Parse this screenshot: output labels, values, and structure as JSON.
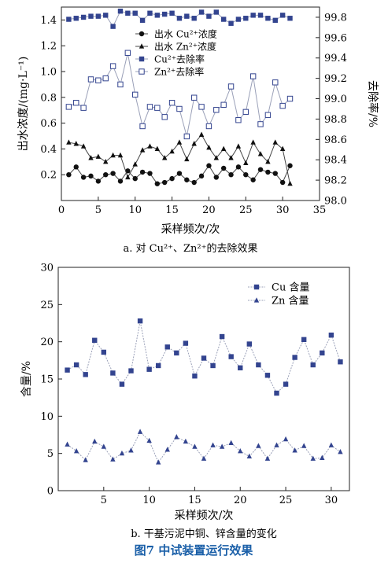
{
  "figure": {
    "caption": "图7 中试装置运行效果",
    "caption_color": "#1a5fa8"
  },
  "chart_data": [
    {
      "type": "line",
      "caption": "a. 对 Cu²⁺、Zn²⁺的去除效果",
      "xlabel": "采样频次/次",
      "ylabel_left": "出水浓度/(mg·L⁻¹)",
      "ylabel_right": "去除率/%",
      "xlim": [
        0,
        35
      ],
      "xticks": [
        0,
        5,
        10,
        15,
        20,
        25,
        30,
        35
      ],
      "ylim_left": [
        0,
        1.5
      ],
      "yticks_left": [
        "0.2",
        "0.4",
        "0.6",
        "0.8",
        "1.0",
        "1.2",
        "1.4"
      ],
      "ylim_right": [
        98.0,
        99.9
      ],
      "yticks_right": [
        "98.0",
        "98.2",
        "98.4",
        "98.6",
        "98.8",
        "99.0",
        "99.2",
        "99.4",
        "99.6",
        "99.8"
      ],
      "legend_position": "top-center",
      "x": [
        1,
        2,
        3,
        4,
        5,
        6,
        7,
        8,
        9,
        10,
        11,
        12,
        13,
        14,
        15,
        16,
        17,
        18,
        19,
        20,
        21,
        22,
        23,
        24,
        25,
        26,
        27,
        28,
        29,
        30,
        31
      ],
      "series": [
        {
          "name": "出水 Cu²⁺浓度",
          "axis": "left",
          "marker": "circle-filled",
          "values": [
            0.2,
            0.26,
            0.18,
            0.19,
            0.15,
            0.2,
            0.21,
            0.15,
            0.23,
            0.17,
            0.22,
            0.21,
            0.13,
            0.14,
            0.17,
            0.21,
            0.16,
            0.14,
            0.19,
            0.27,
            0.18,
            0.25,
            0.2,
            0.26,
            0.2,
            0.16,
            0.24,
            0.22,
            0.21,
            0.14,
            0.27
          ]
        },
        {
          "name": "出水 Zn²⁺浓度",
          "axis": "left",
          "marker": "triangle-filled",
          "values": [
            0.45,
            0.44,
            0.42,
            0.33,
            0.34,
            0.3,
            0.35,
            0.35,
            0.18,
            0.28,
            0.39,
            0.42,
            0.4,
            0.33,
            0.38,
            0.45,
            0.32,
            0.44,
            0.51,
            0.41,
            0.33,
            0.4,
            0.33,
            0.42,
            0.29,
            0.45,
            0.36,
            0.3,
            0.45,
            0.4,
            0.13
          ]
        },
        {
          "name": "Cu²⁺去除率",
          "axis": "right",
          "marker": "square-filled",
          "values": [
            99.78,
            99.79,
            99.8,
            99.81,
            99.81,
            99.82,
            99.71,
            99.86,
            99.84,
            99.84,
            99.77,
            99.84,
            99.82,
            99.83,
            99.84,
            99.79,
            99.81,
            99.79,
            99.85,
            99.81,
            99.85,
            99.78,
            99.74,
            99.78,
            99.79,
            99.82,
            99.82,
            99.79,
            99.77,
            99.82,
            99.79
          ]
        },
        {
          "name": "Zn²⁺去除率",
          "axis": "right",
          "marker": "square-open",
          "values": [
            98.92,
            98.96,
            98.91,
            99.19,
            99.18,
            99.2,
            99.32,
            99.14,
            99.45,
            99.04,
            98.73,
            98.92,
            98.91,
            98.82,
            98.96,
            98.9,
            98.63,
            99.01,
            98.92,
            98.73,
            98.89,
            98.94,
            99.12,
            98.79,
            98.87,
            99.22,
            98.75,
            98.84,
            99.16,
            98.93,
            99.0
          ]
        }
      ]
    },
    {
      "type": "line",
      "caption": "b. 干基污泥中铜、锌含量的变化",
      "xlabel": "采样频次/次",
      "ylabel": "含量/%",
      "xlim": [
        0,
        32
      ],
      "xticks": [
        5,
        10,
        15,
        20,
        25,
        30
      ],
      "ylim": [
        0,
        30
      ],
      "yticks": [
        0,
        5,
        10,
        15,
        20,
        25,
        30
      ],
      "legend_position": "top-right",
      "x": [
        1,
        2,
        3,
        4,
        5,
        6,
        7,
        8,
        9,
        10,
        11,
        12,
        13,
        14,
        15,
        16,
        17,
        18,
        19,
        20,
        21,
        22,
        23,
        24,
        25,
        26,
        27,
        28,
        29,
        30,
        31
      ],
      "series": [
        {
          "name": "Cu 含量",
          "marker": "square-filled",
          "values": [
            16.2,
            16.9,
            15.6,
            20.2,
            18.6,
            15.8,
            14.3,
            16.1,
            22.8,
            16.3,
            16.8,
            19.3,
            18.5,
            19.8,
            15.4,
            17.8,
            16.8,
            20.7,
            18.0,
            16.5,
            19.7,
            16.9,
            15.5,
            13.1,
            14.3,
            17.9,
            20.3,
            16.9,
            18.5,
            20.9,
            17.3
          ]
        },
        {
          "name": "Zn 含量",
          "marker": "triangle-filled",
          "values": [
            6.2,
            5.3,
            4.1,
            6.6,
            5.9,
            4.2,
            5.0,
            5.4,
            7.9,
            6.7,
            3.8,
            5.5,
            7.2,
            6.6,
            5.9,
            4.3,
            6.1,
            5.9,
            6.4,
            5.3,
            4.6,
            6.0,
            4.3,
            6.1,
            6.9,
            5.4,
            6.0,
            4.3,
            4.4,
            6.1,
            5.2
          ]
        }
      ]
    }
  ]
}
